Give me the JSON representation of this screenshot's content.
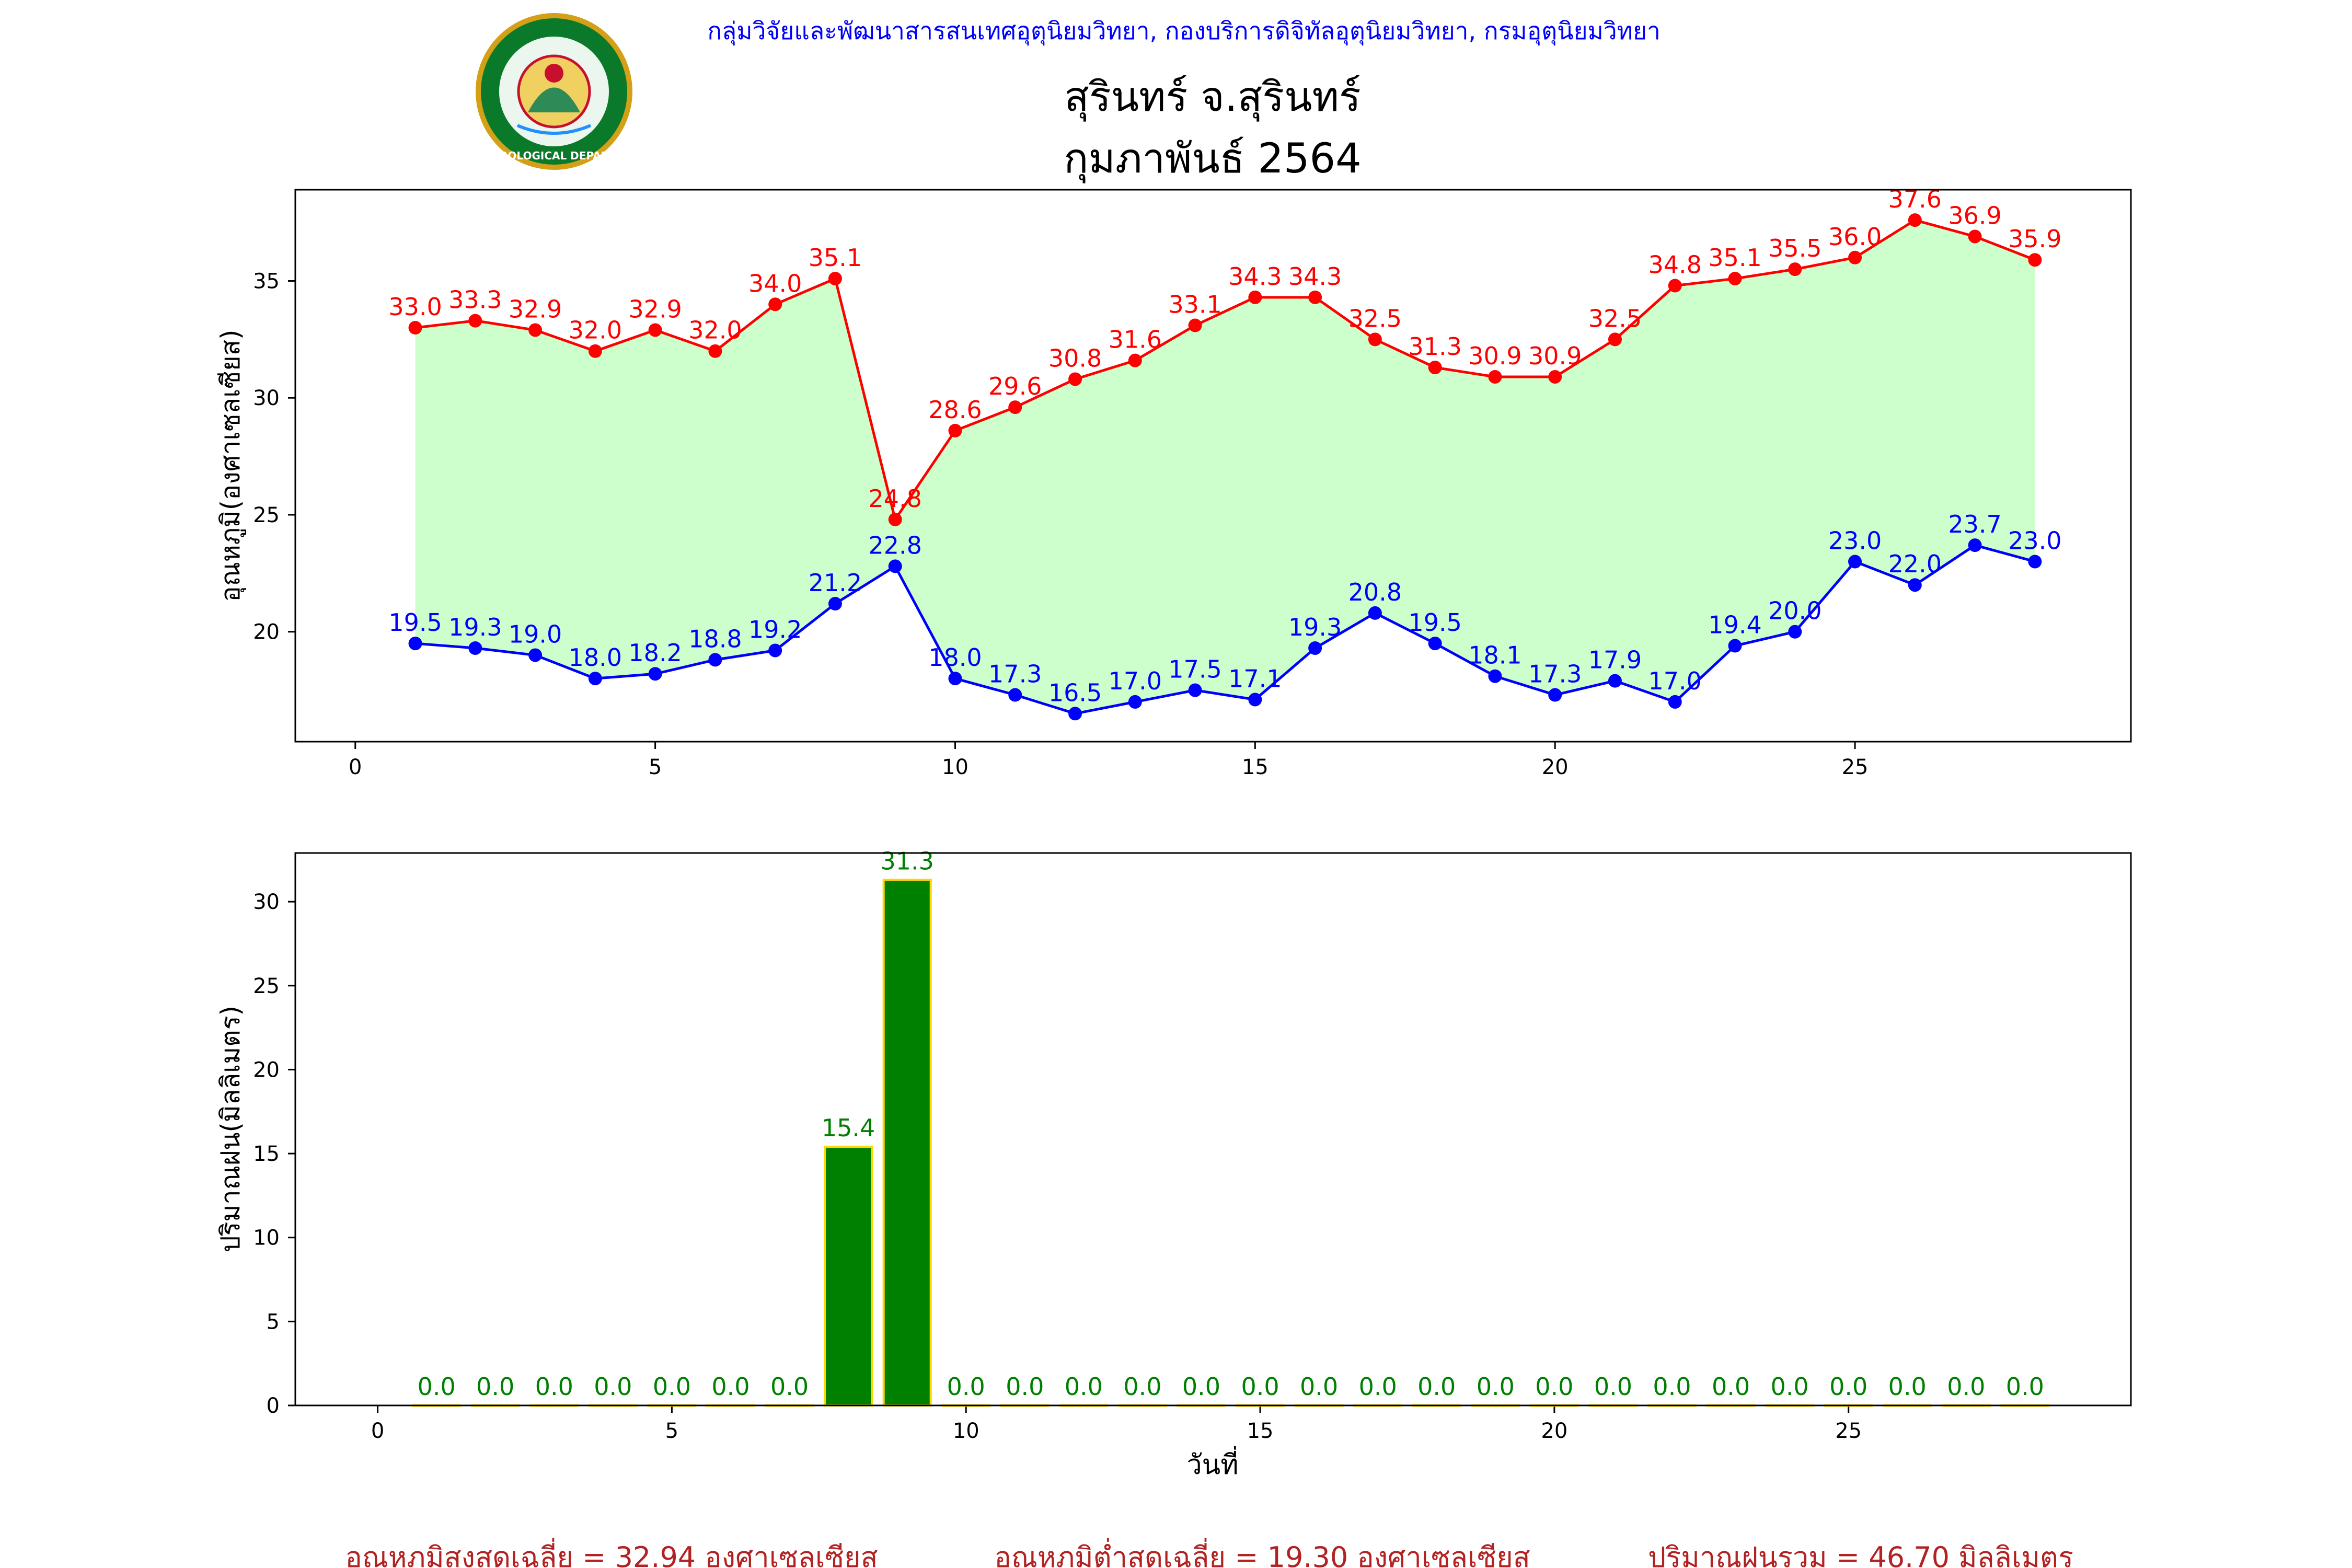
{
  "header": {
    "org_line": "กลุ่มวิจัยและพัฒนาสารสนเทศอุตุนิยมวิทยา, กองบริการดิจิทัลอุตุนิยมวิทยา, กรมอุตุนิยมวิทยา",
    "title": "สุรินทร์ จ.สุรินทร์",
    "subtitle": "กุมภาพันธ์ 2564",
    "logo_icon": "meteorological-department-seal",
    "logo_text": "METEOROLOGICAL DEPARTMENT"
  },
  "colors": {
    "max_line": "#ff0000",
    "min_line": "#0000ff",
    "fill": "#ccffcc",
    "bar": "#008000",
    "bar_edge": "#ffd700",
    "rain_label": "#008000",
    "footer": "#b22222",
    "org_line": "#0000ff"
  },
  "chart_data": [
    {
      "type": "line",
      "ylabel": "อุณหภูมิ(องศาเซลเซียส)",
      "xlabel": "",
      "xlim": [
        -1,
        29.6
      ],
      "ylim": [
        15.3,
        38.9
      ],
      "xticks": [
        0,
        5,
        10,
        15,
        20,
        25
      ],
      "yticks": [
        20,
        25,
        30,
        35
      ],
      "fill_between": true,
      "x": [
        1,
        2,
        3,
        4,
        5,
        6,
        7,
        8,
        9,
        10,
        11,
        12,
        13,
        14,
        15,
        16,
        17,
        18,
        19,
        20,
        21,
        22,
        23,
        24,
        25,
        26,
        27,
        28
      ],
      "series": [
        {
          "key": "max",
          "values": [
            33.0,
            33.3,
            32.9,
            32.0,
            32.9,
            32.0,
            34.0,
            35.1,
            24.8,
            28.6,
            29.6,
            30.8,
            31.6,
            33.1,
            34.3,
            34.3,
            32.5,
            31.3,
            30.9,
            30.9,
            32.5,
            34.8,
            35.1,
            35.5,
            36.0,
            37.6,
            36.9,
            35.9
          ]
        },
        {
          "key": "min",
          "values": [
            19.5,
            19.3,
            19.0,
            18.0,
            18.2,
            18.8,
            19.2,
            21.2,
            22.8,
            18.0,
            17.3,
            16.5,
            17.0,
            17.5,
            17.1,
            19.3,
            20.8,
            19.5,
            18.1,
            17.3,
            17.9,
            17.0,
            19.4,
            20.0,
            23.0,
            22.0,
            23.7,
            23.0
          ]
        }
      ]
    },
    {
      "type": "bar",
      "ylabel": "ปริมาณฝน(มิลลิเมตร)",
      "xlabel": "วันที่",
      "xlim": [
        -1.4,
        29.8
      ],
      "ylim": [
        0,
        32.9
      ],
      "xticks": [
        0,
        5,
        10,
        15,
        20,
        25
      ],
      "yticks": [
        0,
        5,
        10,
        15,
        20,
        25,
        30
      ],
      "x": [
        1,
        2,
        3,
        4,
        5,
        6,
        7,
        8,
        9,
        10,
        11,
        12,
        13,
        14,
        15,
        16,
        17,
        18,
        19,
        20,
        21,
        22,
        23,
        24,
        25,
        26,
        27,
        28
      ],
      "values": [
        0.0,
        0.0,
        0.0,
        0.0,
        0.0,
        0.0,
        0.0,
        15.4,
        31.3,
        0.0,
        0.0,
        0.0,
        0.0,
        0.0,
        0.0,
        0.0,
        0.0,
        0.0,
        0.0,
        0.0,
        0.0,
        0.0,
        0.0,
        0.0,
        0.0,
        0.0,
        0.0,
        0.0
      ]
    }
  ],
  "footer": {
    "avg_max": "อุณหภูมิสูงสุดเฉลี่ย = 32.94 องศาเซลเซียส",
    "avg_min": "อุณหภูมิต่ำสุดเฉลี่ย = 19.30 องศาเซลเซียส",
    "rain_total": "ปริมาณฝนรวม = 46.70 มิลลิเมตร"
  }
}
